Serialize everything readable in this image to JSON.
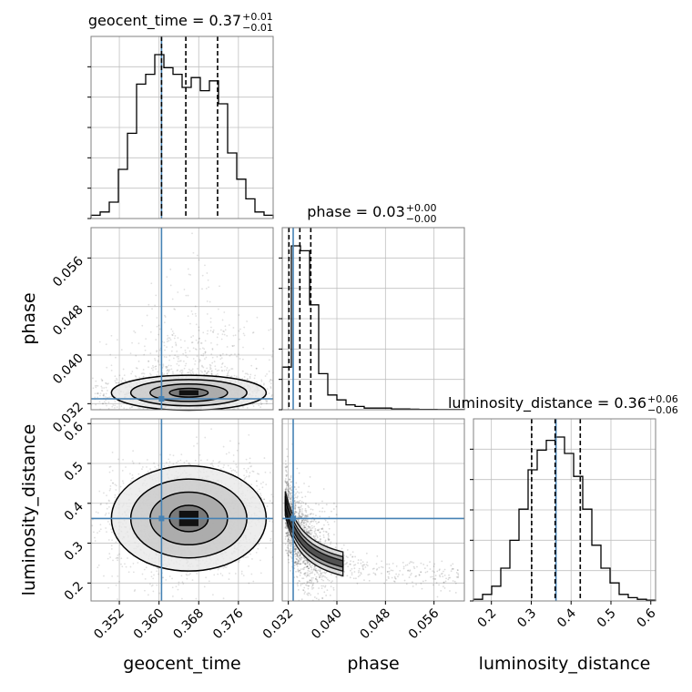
{
  "chart_data": {
    "type": "corner",
    "parameters": [
      "geocent_time",
      "phase",
      "luminosity_distance"
    ],
    "axis_labels": {
      "geocent_time": "geocent_time",
      "phase": "phase",
      "luminosity_distance": "luminosity_distance"
    },
    "titles": [
      {
        "param": "geocent_time",
        "text": "geocent_time = 0.37",
        "sup": "+0.01",
        "sub": "−0.01"
      },
      {
        "param": "phase",
        "text": "phase = 0.03",
        "sup": "+0.00",
        "sub": "−0.00"
      },
      {
        "param": "luminosity_distance",
        "text": "luminosity_distance = 0.36",
        "sup": "+0.06",
        "sub": "−0.06"
      }
    ],
    "ranges": {
      "geocent_time": [
        0.3463,
        0.383
      ],
      "phase": [
        0.031,
        0.061
      ],
      "luminosity_distance": [
        0.155,
        0.612
      ]
    },
    "ticks": {
      "geocent_time": [
        "0.352",
        "0.360",
        "0.368",
        "0.376"
      ],
      "phase": [
        "0.032",
        "0.040",
        "0.048",
        "0.056"
      ],
      "luminosity_distance": [
        "0.2",
        "0.3",
        "0.4",
        "0.5",
        "0.6"
      ]
    },
    "truths": {
      "geocent_time": 0.3605,
      "phase": 0.0328,
      "luminosity_distance": 0.362
    },
    "quantiles": {
      "geocent_time": [
        0.3605,
        0.3654,
        0.3718
      ],
      "phase": [
        0.0321,
        0.0339,
        0.0357
      ],
      "luminosity_distance": [
        0.301,
        0.36,
        0.423
      ]
    },
    "histograms": {
      "geocent_time": [
        2,
        4,
        10,
        30,
        52,
        82,
        88,
        100,
        92,
        88,
        80,
        86,
        78,
        84,
        70,
        40,
        24,
        12,
        4,
        2
      ],
      "phase": [
        26,
        100,
        97,
        64,
        22,
        9,
        6,
        3,
        2,
        1,
        1,
        1,
        0.5,
        0.5,
        0.3,
        0.2,
        0.2,
        0.1,
        0.1,
        0.1
      ],
      "luminosity_distance": [
        1,
        4,
        9,
        20,
        37,
        56,
        80,
        92,
        98,
        100,
        90,
        76,
        56,
        34,
        20,
        11,
        4,
        2,
        1,
        0.5
      ]
    },
    "grid": true,
    "truth_color": "#4682b4",
    "line_color": "#000000",
    "grid_color": "#c0c0c0"
  }
}
